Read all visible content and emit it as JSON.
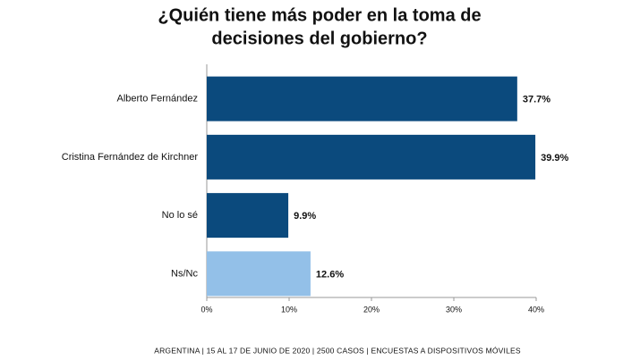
{
  "chart_data": {
    "type": "bar",
    "orientation": "horizontal",
    "title_lines": [
      "¿Quién tiene más poder en la toma de",
      "decisiones del gobierno?"
    ],
    "categories": [
      "Alberto Fernández",
      "Cristina Fernández de Kirchner",
      "No lo sé",
      "Ns/Nc"
    ],
    "values": [
      37.7,
      39.9,
      9.9,
      12.6
    ],
    "value_labels": [
      "37.7%",
      "39.9%",
      "9.9%",
      "12.6%"
    ],
    "colors": [
      "#0b4a7d",
      "#0b4a7d",
      "#0b4a7d",
      "#93c0e8"
    ],
    "xlim": [
      0,
      40
    ],
    "xticks": [
      {
        "value": 0,
        "label": "0%"
      },
      {
        "value": 10,
        "label": "10%"
      },
      {
        "value": 20,
        "label": "20%"
      },
      {
        "value": 30,
        "label": "30%"
      },
      {
        "value": 40,
        "label": "40%"
      }
    ],
    "grid": false,
    "footer": "ARGENTINA | 15 AL 17 DE JUNIO DE 2020 | 2500 CASOS | ENCUESTAS A DISPOSITIVOS MÓVILES"
  }
}
